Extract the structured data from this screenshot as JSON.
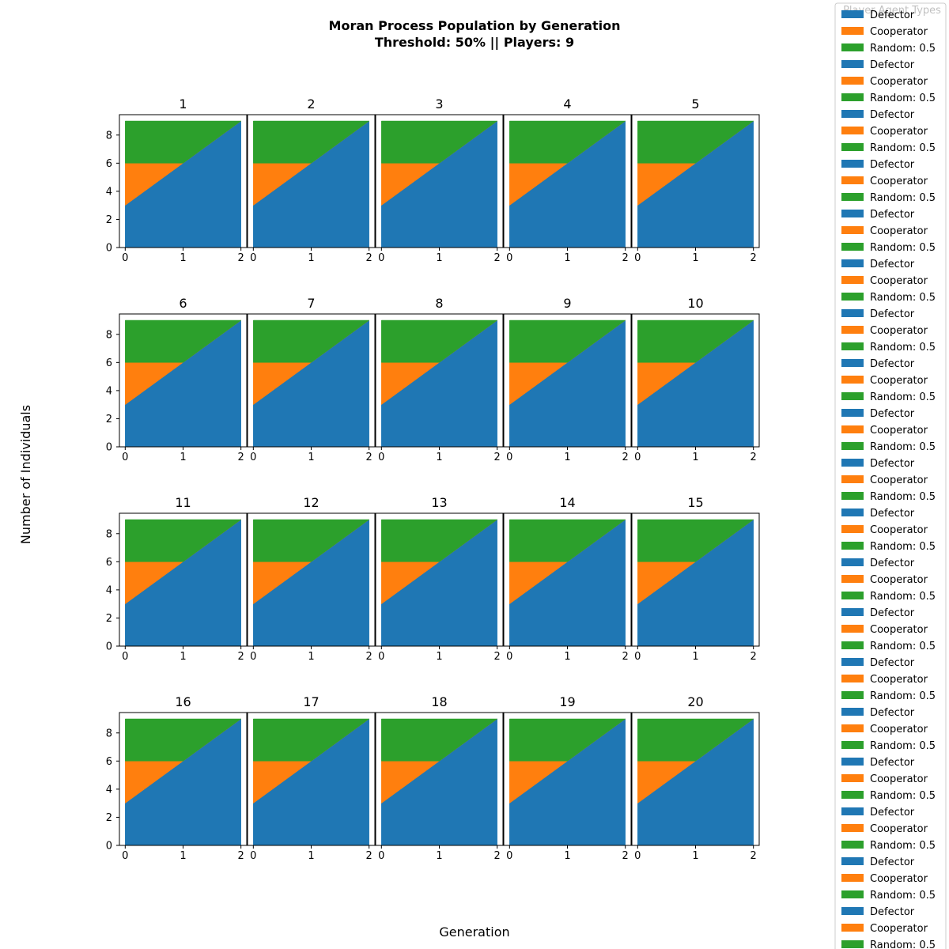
{
  "figure": {
    "title_line1": "Moran Process Population by Generation",
    "title_line2": "Threshold: 50% || Players: 9",
    "xlabel": "Generation",
    "ylabel": "Number of Individuals"
  },
  "legend": {
    "title": "Player Agent Types",
    "placement": "top-right",
    "cycle": [
      "Defector",
      "Cooperator",
      "Random: 0.5"
    ]
  },
  "colors": {
    "Defector": "#1f77b4",
    "Cooperator": "#ff7f0e",
    "Random: 0.5": "#2ca02c"
  },
  "chart_data": {
    "type": "area",
    "stacked": true,
    "panel_titles": [
      "1",
      "2",
      "3",
      "4",
      "5",
      "6",
      "7",
      "8",
      "9",
      "10",
      "11",
      "12",
      "13",
      "14",
      "15",
      "16",
      "17",
      "18",
      "19",
      "20"
    ],
    "x": [
      0,
      1,
      2
    ],
    "x_ticks": [
      0,
      1,
      2
    ],
    "y_ticks": [
      0,
      2,
      4,
      6,
      8
    ],
    "ylim": [
      0,
      9.45
    ],
    "xlim": [
      -0.1,
      2.1
    ],
    "series": [
      {
        "name": "Defector",
        "values": [
          3,
          6,
          9
        ]
      },
      {
        "name": "Cooperator",
        "values": [
          3,
          0,
          0
        ]
      },
      {
        "name": "Random: 0.5",
        "values": [
          3,
          3,
          0
        ]
      }
    ],
    "grid": false
  }
}
